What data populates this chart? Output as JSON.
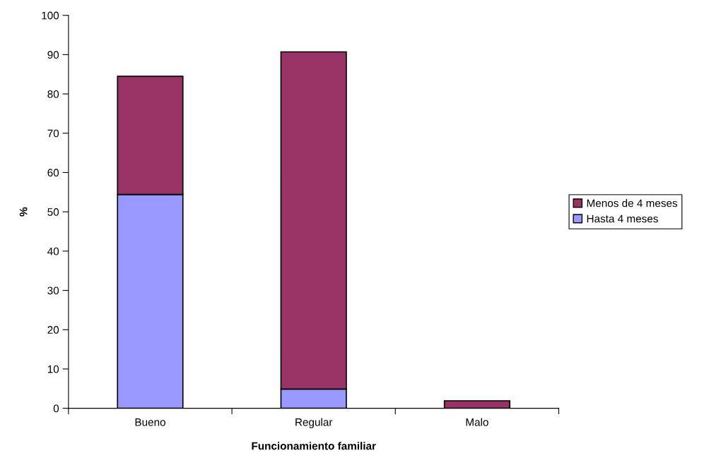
{
  "chart_data": {
    "type": "bar",
    "stacked": true,
    "xlabel": "Funcionamiento familiar",
    "ylabel": "%",
    "categories": [
      "Bueno",
      "Regular",
      "Malo"
    ],
    "series": [
      {
        "name": "Hasta 4 meses",
        "color": "#9999ff",
        "values": [
          54.4,
          4.9,
          0
        ]
      },
      {
        "name": "Menos de 4 meses",
        "color": "#993366",
        "values": [
          30.1,
          85.8,
          1.9
        ]
      }
    ],
    "ylim": [
      0,
      100
    ],
    "yticks": [
      0,
      10,
      20,
      30,
      40,
      50,
      60,
      70,
      80,
      90,
      100
    ],
    "grid": false,
    "legend": "right"
  }
}
